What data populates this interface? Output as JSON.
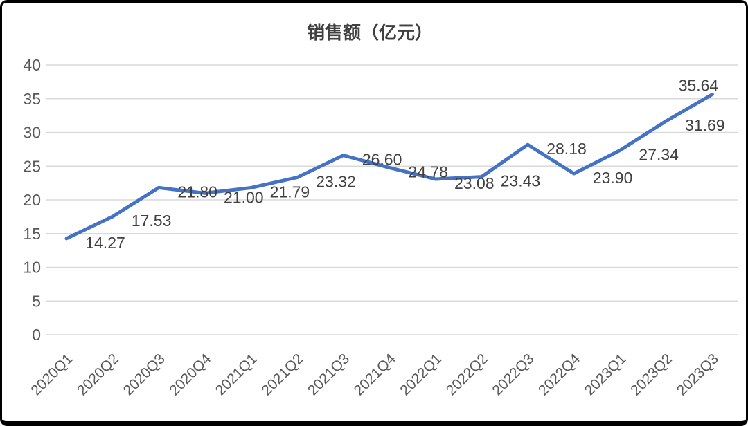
{
  "chart_data": {
    "type": "line",
    "title": "销售额（亿元）",
    "categories": [
      "2020Q1",
      "2020Q2",
      "2020Q3",
      "2020Q4",
      "2021Q1",
      "2021Q2",
      "2021Q3",
      "2021Q4",
      "2022Q1",
      "2022Q2",
      "2022Q3",
      "2022Q4",
      "2023Q1",
      "2023Q2",
      "2023Q3"
    ],
    "values": [
      14.27,
      17.53,
      21.8,
      21.0,
      21.79,
      23.32,
      26.6,
      24.78,
      23.08,
      23.43,
      28.18,
      23.9,
      27.34,
      31.69,
      35.64
    ],
    "data_labels": [
      "14.27",
      "17.53",
      "21.80",
      "21.00",
      "21.79",
      "23.32",
      "26.60",
      "24.78",
      "23.08",
      "23.43",
      "28.18",
      "23.90",
      "27.34",
      "31.69",
      "35.64"
    ],
    "ylim": [
      0,
      40
    ],
    "y_tick_step": 5,
    "y_ticks": [
      "0",
      "5",
      "10",
      "15",
      "20",
      "25",
      "30",
      "35",
      "40"
    ],
    "grid": "horizontal",
    "legend": "none",
    "xlabel": "",
    "ylabel": "",
    "colors": {
      "line": "#4472C4",
      "data_label": "#404040",
      "axis_label": "#595959",
      "gridline": "#D9D9D9",
      "title": "#404040",
      "background": "#FFFFFF",
      "frame": "#000000"
    }
  }
}
